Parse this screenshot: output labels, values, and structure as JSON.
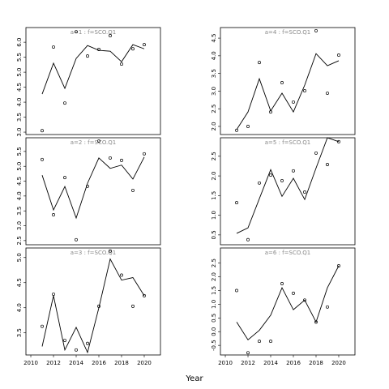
{
  "xlabel": "Year",
  "chart_data": [
    {
      "type": "line",
      "subtitle": "a=1 : f=SCO.Q1",
      "x": [
        2011,
        2012,
        2013,
        2014,
        2015,
        2016,
        2017,
        2018,
        2019,
        2020
      ],
      "xlim": [
        2009.57,
        2021.43
      ],
      "ylim": [
        2.92,
        6.49
      ],
      "yticks": [
        {
          "value": 3,
          "label": "3.0"
        },
        3.5,
        {
          "value": 4,
          "label": "4.0"
        },
        4.5,
        {
          "value": 5,
          "label": "5.0"
        },
        5.5,
        {
          "value": 6,
          "label": "6.0"
        }
      ],
      "series": [
        {
          "mode": "points",
          "color": "#000000",
          "values": [
            3.05,
            5.84,
            3.97,
            6.35,
            5.54,
            5.76,
            6.22,
            5.27,
            5.78,
            5.92
          ]
        },
        {
          "mode": "line",
          "color": "#000000",
          "values": [
            4.27,
            5.3,
            4.46,
            5.46,
            5.89,
            5.73,
            5.7,
            5.35,
            5.92,
            5.78
          ]
        }
      ]
    },
    {
      "type": "line",
      "subtitle": "a=2 : f=SCO.Q1",
      "x": [
        2011,
        2012,
        2013,
        2014,
        2015,
        2016,
        2017,
        2018,
        2019,
        2020
      ],
      "xlim": [
        2009.57,
        2021.43
      ],
      "ylim": [
        2.36,
        5.96
      ],
      "yticks": [
        2.5,
        {
          "value": 3,
          "label": "3.0"
        },
        3.5,
        {
          "value": 4,
          "label": "4.0"
        },
        4.5,
        {
          "value": 5,
          "label": "5.0"
        },
        5.5
      ],
      "series": [
        {
          "mode": "points",
          "color": "#000000",
          "values": [
            5.23,
            3.37,
            4.62,
            2.53,
            4.33,
            5.85,
            5.28,
            5.2,
            4.19,
            5.42
          ]
        },
        {
          "mode": "line",
          "color": "#000000",
          "values": [
            4.7,
            3.53,
            4.32,
            3.26,
            4.43,
            5.28,
            4.93,
            5.04,
            4.57,
            5.31
          ]
        }
      ]
    },
    {
      "type": "line",
      "subtitle": "a=3 : f=SCO.Q1",
      "x": [
        2011,
        2012,
        2013,
        2014,
        2015,
        2016,
        2017,
        2018,
        2019,
        2020
      ],
      "xlim": [
        2009.57,
        2021.43
      ],
      "ylim": [
        3.06,
        5.19
      ],
      "xticks": [
        2010,
        2012,
        2014,
        2016,
        2018,
        2020
      ],
      "yticks": [
        3.5,
        {
          "value": 4,
          "label": "4.0"
        },
        4.5,
        {
          "value": 5,
          "label": "5.0"
        }
      ],
      "series": [
        {
          "mode": "points",
          "color": "#000000",
          "values": [
            3.63,
            4.27,
            3.35,
            3.16,
            3.29,
            4.03,
            5.13,
            4.65,
            4.03,
            4.24
          ]
        },
        {
          "mode": "line",
          "color": "#000000",
          "values": [
            3.23,
            4.24,
            3.16,
            3.61,
            3.11,
            4.0,
            4.97,
            4.55,
            4.6,
            4.24
          ]
        }
      ]
    },
    {
      "type": "line",
      "subtitle": "a=4 : f=SCO.Q1",
      "x": [
        2011,
        2012,
        2013,
        2014,
        2015,
        2016,
        2017,
        2018,
        2019,
        2020
      ],
      "xlim": [
        2009.57,
        2021.43
      ],
      "ylim": [
        1.77,
        4.8
      ],
      "yticks": [
        {
          "value": 2,
          "label": "2.0"
        },
        2.5,
        {
          "value": 3,
          "label": "3.0"
        },
        3.5,
        {
          "value": 4,
          "label": "4.0"
        },
        4.5
      ],
      "series": [
        {
          "mode": "points",
          "color": "#000000",
          "values": [
            1.89,
            2.0,
            3.81,
            2.41,
            3.24,
            2.69,
            3.01,
            4.71,
            2.94,
            4.02
          ]
        },
        {
          "mode": "line",
          "color": "#000000",
          "values": [
            1.91,
            2.41,
            3.35,
            2.44,
            2.94,
            2.41,
            3.17,
            4.06,
            3.72,
            3.86
          ]
        }
      ]
    },
    {
      "type": "line",
      "subtitle": "a=5 : f=SCO.Q1",
      "x": [
        2011,
        2012,
        2013,
        2014,
        2015,
        2016,
        2017,
        2018,
        2019,
        2020
      ],
      "xlim": [
        2009.57,
        2021.43
      ],
      "ylim": [
        0.25,
        2.97
      ],
      "yticks": [
        0.5,
        {
          "value": 1,
          "label": "1.0"
        },
        1.5,
        {
          "value": 2,
          "label": "2.0"
        },
        2.5
      ],
      "series": [
        {
          "mode": "points",
          "color": "#000000",
          "values": [
            1.32,
            0.38,
            1.82,
            2.02,
            1.88,
            2.13,
            1.59,
            2.58,
            2.29,
            2.87
          ]
        },
        {
          "mode": "line",
          "color": "#000000",
          "values": [
            0.54,
            0.68,
            1.42,
            2.16,
            1.48,
            1.94,
            1.4,
            2.2,
            2.97,
            2.87
          ]
        }
      ]
    },
    {
      "type": "line",
      "subtitle": "a=6 : f=SCO.Q1",
      "x": [
        2011,
        2012,
        2013,
        2014,
        2015,
        2016,
        2017,
        2018,
        2019,
        2020
      ],
      "xlim": [
        2009.57,
        2021.43
      ],
      "ylim": [
        -0.85,
        3.05
      ],
      "xticks": [
        2010,
        2012,
        2014,
        2016,
        2018,
        2020
      ],
      "yticks": [
        -0.5,
        {
          "value": 0,
          "label": "0.0"
        },
        0.5,
        {
          "value": 1,
          "label": "1.0"
        },
        1.5,
        {
          "value": 2,
          "label": "2.0"
        },
        2.5
      ],
      "series": [
        {
          "mode": "points",
          "color": "#000000",
          "values": [
            1.5,
            -0.77,
            -0.35,
            -0.35,
            1.75,
            1.4,
            1.15,
            0.35,
            0.9,
            2.4
          ]
        },
        {
          "mode": "line",
          "color": "#000000",
          "values": [
            0.35,
            -0.3,
            0.05,
            0.6,
            1.6,
            0.8,
            1.15,
            0.35,
            1.6,
            2.4
          ]
        }
      ]
    }
  ]
}
